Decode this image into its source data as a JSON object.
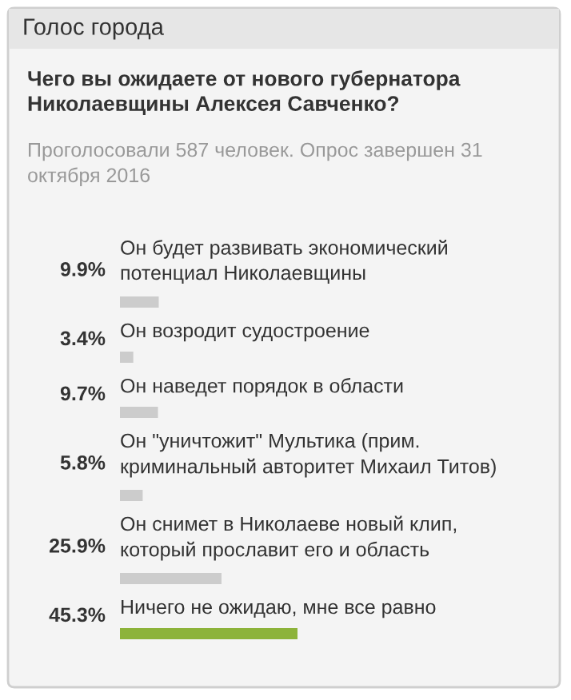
{
  "chart_data": {
    "type": "bar",
    "orientation": "horizontal",
    "annotations": [
      "Голос города"
    ],
    "title": "Чего вы ожидаете от нового губернатора\nНиколаевщины Алексея Савченко?",
    "subtitle": "Проголосовали 587 человек. Опрос завершен 31\nоктября 2016",
    "categories": [
      "Он будет развивать экономический\nпотенциал Николаевщины",
      "Он возродит судостроение",
      "Он наведет порядок в области",
      "Он \"уничтожит\" Мультика (прим.\nкриминальный авторитет Михаил Титов)",
      "Он снимет в Николаеве новый клип,\nкоторый прославит его и область",
      "Ничего не ожидаю, мне все равно"
    ],
    "values": [
      9.9,
      3.4,
      9.7,
      5.8,
      25.9,
      45.3
    ],
    "value_labels": [
      "9.9%",
      "3.4%",
      "9.7%",
      "5.8%",
      "25.9%",
      "45.3%"
    ],
    "colors": [
      "#cccccc",
      "#cccccc",
      "#cccccc",
      "#cccccc",
      "#cccccc",
      "#8db33a"
    ]
  }
}
